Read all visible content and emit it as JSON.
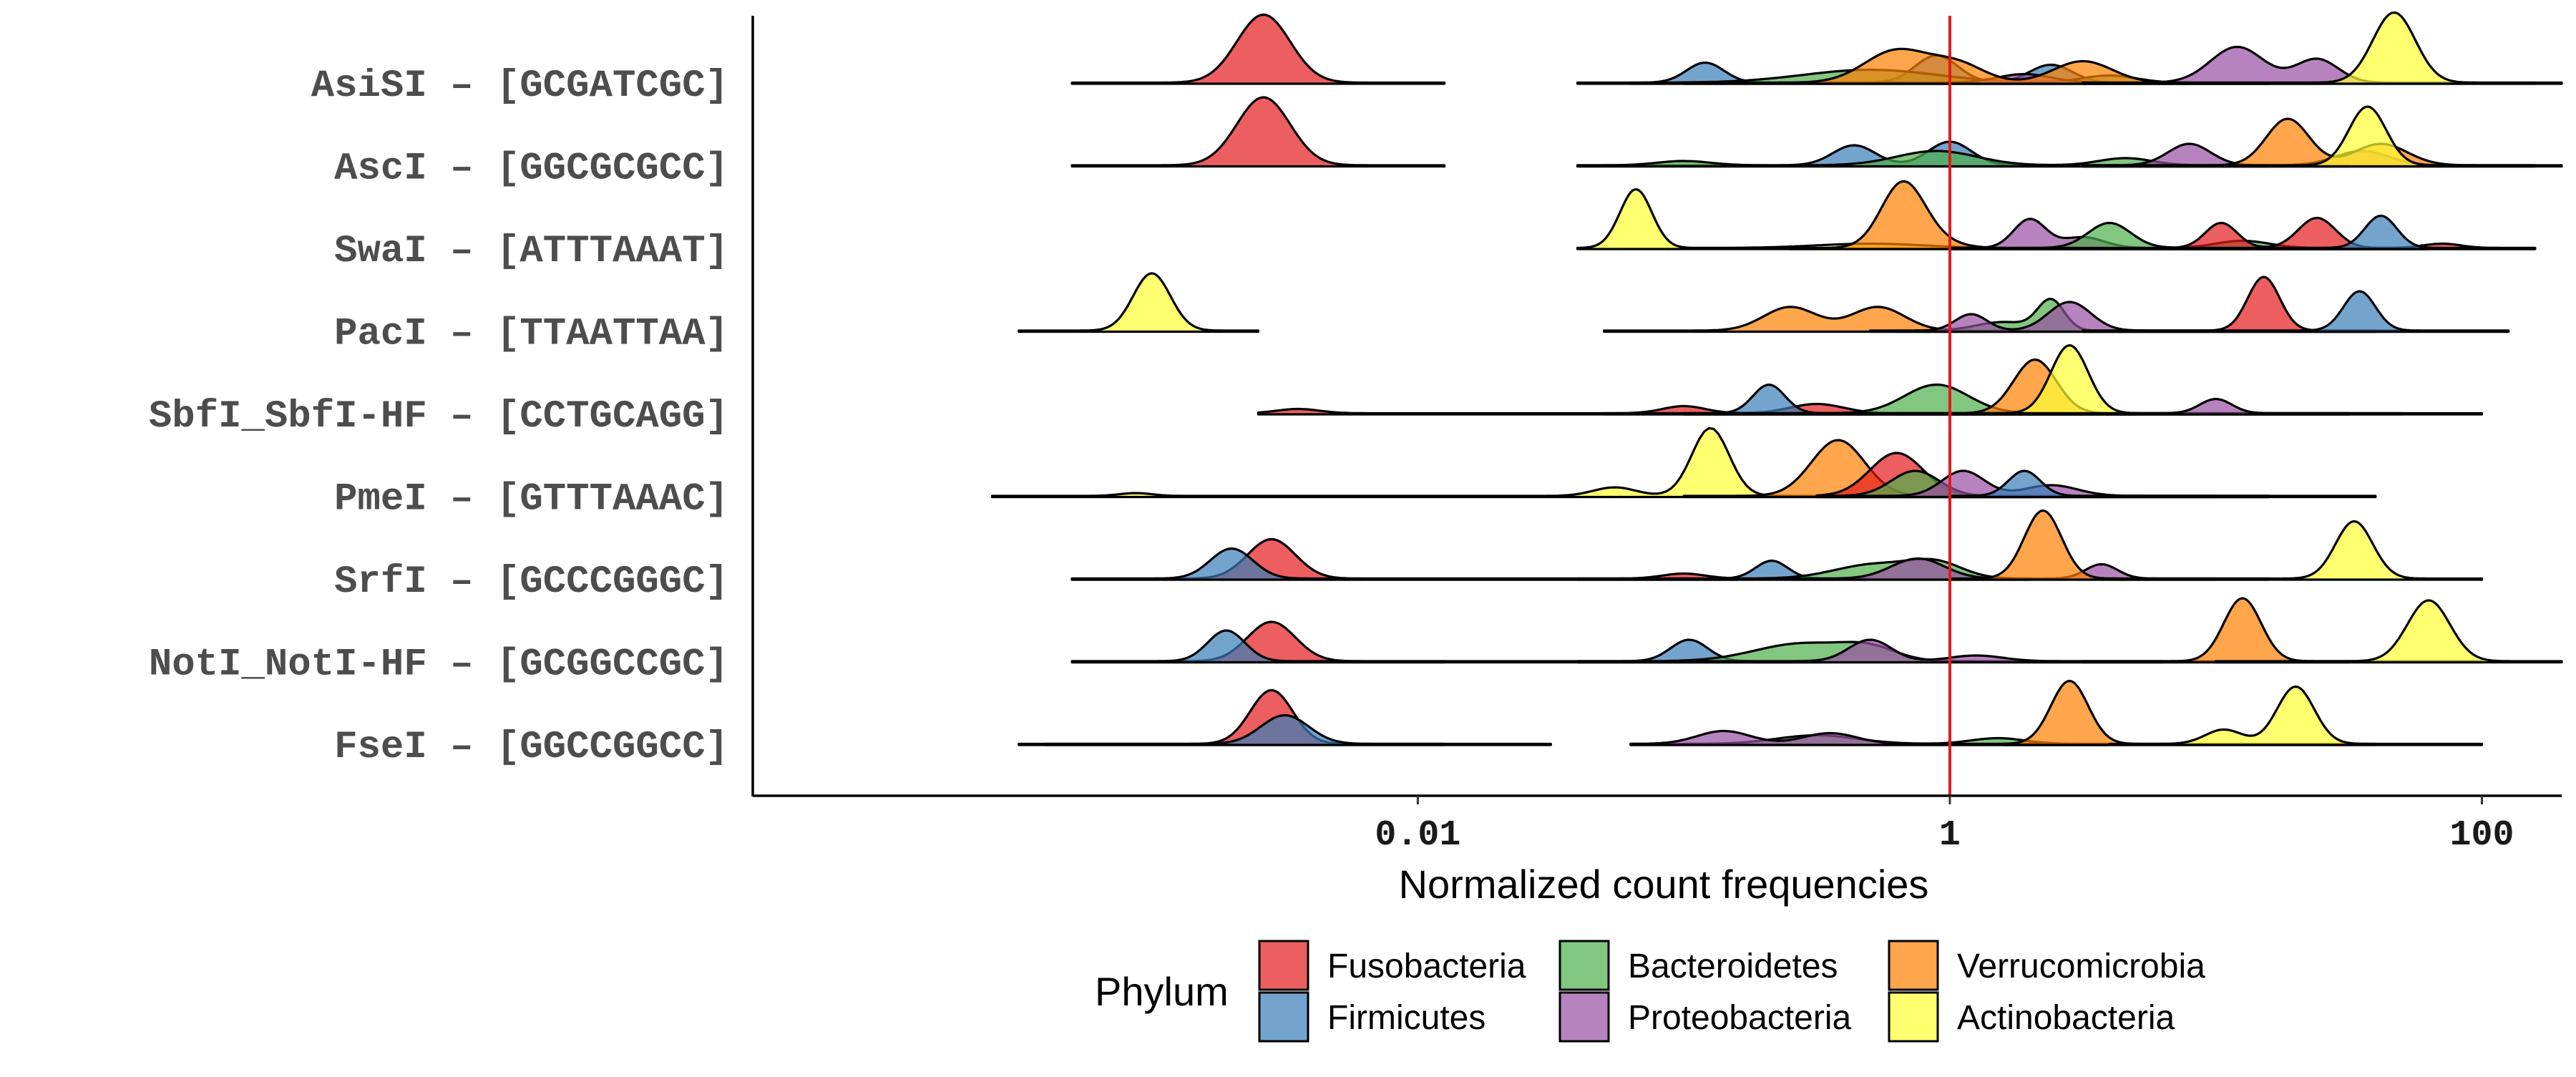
{
  "chart_data": {
    "type": "ridgeline",
    "title": "",
    "xlabel": "Normalized count frequencies",
    "ylabel": "",
    "x_scale": "log10",
    "x_range_log10": [
      -4.5,
      2.3
    ],
    "x_ticks": [
      {
        "value": 0.01,
        "label": "0.01"
      },
      {
        "value": 1,
        "label": "1"
      },
      {
        "value": 100,
        "label": "100"
      }
    ],
    "reference_line": {
      "x": 1,
      "color": "#e41a1c"
    },
    "categories": [
      "AsiSI – [GCGATCGC]",
      "AscI – [GGCGCGCC]",
      "SwaI – [ATTTAAAT]",
      "PacI – [TTAATTAA]",
      "SbfI_SbfI-HF – [CCTGCAGG]",
      "PmeI – [GTTTAAAC]",
      "SrfI – [GCCCGGGC]",
      "NotI_NotI-HF – [GCGGCCGC]",
      "FseI – [GGCCGGCC]"
    ],
    "legend": {
      "title": "Phylum",
      "position": "bottom",
      "entries": [
        {
          "name": "Fusobacteria",
          "color": "#e41a1c"
        },
        {
          "name": "Firmicutes",
          "color": "#377eb8"
        },
        {
          "name": "Bacteroidetes",
          "color": "#4daf4a"
        },
        {
          "name": "Proteobacteria",
          "color": "#984ea3"
        },
        {
          "name": "Verrucomicrobia",
          "color": "#ff7f00"
        },
        {
          "name": "Actinobacteria",
          "color": "#ffff33"
        }
      ]
    },
    "series": [
      {
        "category": "AsiSI – [GCGATCGC]",
        "phylum": "Fusobacteria",
        "range": [
          -3.3,
          -1.9
        ],
        "peaks": [
          [
            -2.58,
            0.1,
            0.95
          ]
        ]
      },
      {
        "category": "AsiSI – [GCGATCGC]",
        "phylum": "Firmicutes",
        "range": [
          -1.4,
          1.2
        ],
        "peaks": [
          [
            -0.92,
            0.07,
            0.28
          ],
          [
            -0.05,
            0.08,
            0.38
          ],
          [
            0.38,
            0.08,
            0.25
          ]
        ]
      },
      {
        "category": "AsiSI – [GCGATCGC]",
        "phylum": "Bacteroidetes",
        "range": [
          -1.2,
          1.4
        ],
        "peaks": [
          [
            -0.3,
            0.25,
            0.18
          ],
          [
            0.6,
            0.1,
            0.1
          ]
        ]
      },
      {
        "category": "AsiSI – [GCGATCGC]",
        "phylum": "Proteobacteria",
        "range": [
          -0.5,
          2.3
        ],
        "peaks": [
          [
            0.28,
            0.1,
            0.12
          ],
          [
            1.08,
            0.1,
            0.5
          ],
          [
            1.38,
            0.08,
            0.33
          ]
        ]
      },
      {
        "category": "AsiSI – [GCGATCGC]",
        "phylum": "Verrucomicrobia",
        "range": [
          -1.0,
          0.9
        ],
        "peaks": [
          [
            -0.2,
            0.12,
            0.45
          ],
          [
            0.03,
            0.1,
            0.25
          ],
          [
            0.5,
            0.11,
            0.3
          ]
        ]
      },
      {
        "category": "AsiSI – [GCGATCGC]",
        "phylum": "Actinobacteria",
        "range": [
          0.5,
          2.2
        ],
        "peaks": [
          [
            1.67,
            0.08,
            0.98
          ]
        ]
      },
      {
        "category": "AscI – [GGCGCGCC]",
        "phylum": "Fusobacteria",
        "range": [
          -3.3,
          -1.9
        ],
        "peaks": [
          [
            -2.58,
            0.1,
            0.95
          ]
        ]
      },
      {
        "category": "AscI – [GGCGCGCC]",
        "phylum": "Firmicutes",
        "range": [
          -1.4,
          1.5
        ],
        "peaks": [
          [
            -0.36,
            0.08,
            0.28
          ],
          [
            0.0,
            0.08,
            0.33
          ]
        ]
      },
      {
        "category": "AscI – [GGCGCGCC]",
        "phylum": "Bacteroidetes",
        "range": [
          -1.4,
          1.2
        ],
        "peaks": [
          [
            -1.0,
            0.1,
            0.06
          ],
          [
            -0.05,
            0.15,
            0.2
          ],
          [
            0.66,
            0.1,
            0.1
          ]
        ]
      },
      {
        "category": "AscI – [GGCGCGCC]",
        "phylum": "Proteobacteria",
        "range": [
          0.5,
          2.2
        ],
        "peaks": [
          [
            0.9,
            0.08,
            0.3
          ],
          [
            1.55,
            0.1,
            0.2
          ]
        ]
      },
      {
        "category": "AscI – [GGCGCGCC]",
        "phylum": "Verrucomicrobia",
        "range": [
          0.5,
          2.2
        ],
        "peaks": [
          [
            1.27,
            0.08,
            0.65
          ],
          [
            1.62,
            0.1,
            0.3
          ]
        ]
      },
      {
        "category": "AscI – [GGCGCGCC]",
        "phylum": "Actinobacteria",
        "range": [
          0.5,
          2.3
        ],
        "peaks": [
          [
            1.57,
            0.07,
            0.82
          ]
        ]
      },
      {
        "category": "SwaI – [ATTTAAAT]",
        "phylum": "Actinobacteria",
        "range": [
          -1.4,
          0.5
        ],
        "peaks": [
          [
            -1.18,
            0.06,
            0.82
          ],
          [
            -0.3,
            0.2,
            0.06
          ]
        ]
      },
      {
        "category": "SwaI – [ATTTAAAT]",
        "phylum": "Verrucomicrobia",
        "range": [
          -0.6,
          1.5
        ],
        "peaks": [
          [
            -0.18,
            0.08,
            0.82
          ],
          [
            -0.1,
            0.1,
            0.15
          ]
        ]
      },
      {
        "category": "SwaI – [ATTTAAAT]",
        "phylum": "Proteobacteria",
        "range": [
          0.0,
          1.8
        ],
        "peaks": [
          [
            0.3,
            0.06,
            0.4
          ],
          [
            0.5,
            0.08,
            0.15
          ]
        ]
      },
      {
        "category": "SwaI – [ATTTAAAT]",
        "phylum": "Bacteroidetes",
        "range": [
          0.0,
          1.8
        ],
        "peaks": [
          [
            0.6,
            0.08,
            0.35
          ],
          [
            1.1,
            0.1,
            0.1
          ]
        ]
      },
      {
        "category": "SwaI – [ATTTAAAT]",
        "phylum": "Fusobacteria",
        "range": [
          0.4,
          2.2
        ],
        "peaks": [
          [
            1.02,
            0.06,
            0.35
          ],
          [
            1.38,
            0.07,
            0.42
          ],
          [
            1.85,
            0.07,
            0.06
          ]
        ]
      },
      {
        "category": "SwaI – [ATTTAAAT]",
        "phylum": "Firmicutes",
        "range": [
          0.8,
          2.2
        ],
        "peaks": [
          [
            1.62,
            0.06,
            0.45
          ]
        ]
      },
      {
        "category": "PacI – [TTAATTAA]",
        "phylum": "Actinobacteria",
        "range": [
          -3.5,
          -2.6
        ],
        "peaks": [
          [
            -3.0,
            0.07,
            0.8
          ]
        ]
      },
      {
        "category": "PacI – [TTAATTAA]",
        "phylum": "Verrucomicrobia",
        "range": [
          -1.3,
          0.3
        ],
        "peaks": [
          [
            -0.6,
            0.1,
            0.33
          ],
          [
            -0.27,
            0.1,
            0.33
          ]
        ]
      },
      {
        "category": "PacI – [TTAATTAA]",
        "phylum": "Bacteroidetes",
        "range": [
          -0.3,
          1.6
        ],
        "peaks": [
          [
            0.2,
            0.1,
            0.12
          ],
          [
            0.38,
            0.05,
            0.42
          ]
        ]
      },
      {
        "category": "PacI – [TTAATTAA]",
        "phylum": "Proteobacteria",
        "range": [
          -0.2,
          1.6
        ],
        "peaks": [
          [
            0.08,
            0.06,
            0.23
          ],
          [
            0.45,
            0.08,
            0.4
          ]
        ]
      },
      {
        "category": "PacI – [TTAATTAA]",
        "phylum": "Fusobacteria",
        "range": [
          0.5,
          2.1
        ],
        "peaks": [
          [
            1.18,
            0.06,
            0.75
          ]
        ]
      },
      {
        "category": "PacI – [TTAATTAA]",
        "phylum": "Firmicutes",
        "range": [
          0.5,
          2.1
        ],
        "peaks": [
          [
            1.54,
            0.06,
            0.55
          ]
        ]
      },
      {
        "category": "SbfI_SbfI-HF – [CCTGCAGG]",
        "phylum": "Fusobacteria",
        "range": [
          -2.6,
          0.5
        ],
        "peaks": [
          [
            -2.45,
            0.08,
            0.06
          ],
          [
            -1.0,
            0.08,
            0.1
          ],
          [
            -0.5,
            0.1,
            0.13
          ]
        ]
      },
      {
        "category": "SbfI_SbfI-HF – [CCTGCAGG]",
        "phylum": "Firmicutes",
        "range": [
          -1.3,
          0.7
        ],
        "peaks": [
          [
            -0.68,
            0.06,
            0.4
          ]
        ]
      },
      {
        "category": "SbfI_SbfI-HF – [CCTGCAGG]",
        "phylum": "Bacteroidetes",
        "range": [
          -1.0,
          1.5
        ],
        "peaks": [
          [
            -0.05,
            0.12,
            0.4
          ]
        ]
      },
      {
        "category": "SbfI_SbfI-HF – [CCTGCAGG]",
        "phylum": "Verrucomicrobia",
        "range": [
          -1.0,
          1.5
        ],
        "peaks": [
          [
            0.32,
            0.08,
            0.75
          ]
        ]
      },
      {
        "category": "SbfI_SbfI-HF – [CCTGCAGG]",
        "phylum": "Actinobacteria",
        "range": [
          -0.2,
          1.7
        ],
        "peaks": [
          [
            0.45,
            0.07,
            0.95
          ]
        ]
      },
      {
        "category": "SbfI_SbfI-HF – [CCTGCAGG]",
        "phylum": "Proteobacteria",
        "range": [
          -0.5,
          2.0
        ],
        "peaks": [
          [
            1.0,
            0.06,
            0.2
          ]
        ]
      },
      {
        "category": "PmeI – [GTTTAAAC]",
        "phylum": "Actinobacteria",
        "range": [
          -3.6,
          0.3
        ],
        "peaks": [
          [
            -3.06,
            0.06,
            0.04
          ],
          [
            -1.26,
            0.08,
            0.12
          ],
          [
            -0.9,
            0.07,
            0.95
          ]
        ]
      },
      {
        "category": "PmeI – [GTTTAAAC]",
        "phylum": "Verrucomicrobia",
        "range": [
          -1.0,
          1.0
        ],
        "peaks": [
          [
            -0.42,
            0.1,
            0.78
          ]
        ]
      },
      {
        "category": "PmeI – [GTTTAAAC]",
        "phylum": "Fusobacteria",
        "range": [
          -0.5,
          1.2
        ],
        "peaks": [
          [
            -0.2,
            0.1,
            0.6
          ]
        ]
      },
      {
        "category": "PmeI – [GTTTAAAC]",
        "phylum": "Bacteroidetes",
        "range": [
          -0.5,
          1.2
        ],
        "peaks": [
          [
            -0.13,
            0.09,
            0.35
          ]
        ]
      },
      {
        "category": "PmeI – [GTTTAAAC]",
        "phylum": "Proteobacteria",
        "range": [
          -0.5,
          1.6
        ],
        "peaks": [
          [
            0.05,
            0.08,
            0.35
          ],
          [
            0.38,
            0.1,
            0.15
          ]
        ]
      },
      {
        "category": "PmeI – [GTTTAAAC]",
        "phylum": "Firmicutes",
        "range": [
          0.0,
          1.2
        ],
        "peaks": [
          [
            0.28,
            0.06,
            0.35
          ]
        ]
      },
      {
        "category": "SrfI – [GCCCGGGC]",
        "phylum": "Fusobacteria",
        "range": [
          -3.3,
          -0.8
        ],
        "peaks": [
          [
            -2.55,
            0.09,
            0.55
          ],
          [
            -1.0,
            0.08,
            0.07
          ]
        ]
      },
      {
        "category": "SrfI – [GCCCGGGC]",
        "phylum": "Firmicutes",
        "range": [
          -3.3,
          -0.3
        ],
        "peaks": [
          [
            -2.7,
            0.08,
            0.42
          ],
          [
            -0.67,
            0.06,
            0.25
          ]
        ]
      },
      {
        "category": "SrfI – [GCCCGGGC]",
        "phylum": "Bacteroidetes",
        "range": [
          -1.4,
          0.3
        ],
        "peaks": [
          [
            -0.28,
            0.15,
            0.2
          ],
          [
            -0.05,
            0.1,
            0.2
          ]
        ]
      },
      {
        "category": "SrfI – [GCCCGGGC]",
        "phylum": "Proteobacteria",
        "range": [
          -0.6,
          1.2
        ],
        "peaks": [
          [
            -0.12,
            0.1,
            0.28
          ],
          [
            0.57,
            0.06,
            0.2
          ]
        ]
      },
      {
        "category": "SrfI – [GCCCGGGC]",
        "phylum": "Verrucomicrobia",
        "range": [
          0.0,
          1.0
        ],
        "peaks": [
          [
            0.35,
            0.07,
            0.95
          ]
        ]
      },
      {
        "category": "SrfI – [GCCCGGGC]",
        "phylum": "Actinobacteria",
        "range": [
          0.6,
          2.0
        ],
        "peaks": [
          [
            1.52,
            0.07,
            0.8
          ]
        ]
      },
      {
        "category": "NotI_NotI-HF – [GCGGCCGC]",
        "phylum": "Fusobacteria",
        "range": [
          -3.3,
          -1.9
        ],
        "peaks": [
          [
            -2.55,
            0.09,
            0.55
          ]
        ]
      },
      {
        "category": "NotI_NotI-HF – [GCGGCCGC]",
        "phylum": "Firmicutes",
        "range": [
          -3.3,
          -0.5
        ],
        "peaks": [
          [
            -2.72,
            0.07,
            0.43
          ],
          [
            -0.98,
            0.07,
            0.3
          ]
        ]
      },
      {
        "category": "NotI_NotI-HF – [GCGGCCGC]",
        "phylum": "Bacteroidetes",
        "range": [
          -1.4,
          0.8
        ],
        "peaks": [
          [
            -0.55,
            0.18,
            0.25
          ],
          [
            -0.3,
            0.1,
            0.15
          ]
        ]
      },
      {
        "category": "NotI_NotI-HF – [GCGGCCGC]",
        "phylum": "Proteobacteria",
        "range": [
          -1.4,
          1.5
        ],
        "peaks": [
          [
            -0.3,
            0.08,
            0.3
          ],
          [
            0.1,
            0.1,
            0.08
          ]
        ]
      },
      {
        "category": "NotI_NotI-HF – [GCGGCCGC]",
        "phylum": "Verrucomicrobia",
        "range": [
          0.5,
          2.0
        ],
        "peaks": [
          [
            1.1,
            0.07,
            0.88
          ]
        ]
      },
      {
        "category": "NotI_NotI-HF – [GCGGCCGC]",
        "phylum": "Actinobacteria",
        "range": [
          1.0,
          2.3
        ],
        "peaks": [
          [
            1.8,
            0.08,
            0.85
          ]
        ]
      },
      {
        "category": "FseI – [GGCCGGCC]",
        "phylum": "Fusobacteria",
        "range": [
          -3.5,
          -1.9
        ],
        "peaks": [
          [
            -2.55,
            0.08,
            0.75
          ]
        ]
      },
      {
        "category": "FseI – [GGCCGGCC]",
        "phylum": "Firmicutes",
        "range": [
          -3.4,
          -1.5
        ],
        "peaks": [
          [
            -2.5,
            0.09,
            0.4
          ],
          [
            -1.23,
            0.05,
            0.45
          ]
        ]
      },
      {
        "category": "FseI – [GGCCGGCC]",
        "phylum": "Bacteroidetes",
        "range": [
          -1.2,
          0.6
        ],
        "peaks": [
          [
            -0.5,
            0.15,
            0.12
          ],
          [
            0.18,
            0.1,
            0.08
          ]
        ]
      },
      {
        "category": "FseI – [GGCCGGCC]",
        "phylum": "Proteobacteria",
        "range": [
          -1.2,
          0.6
        ],
        "peaks": [
          [
            -0.85,
            0.1,
            0.18
          ],
          [
            -0.45,
            0.1,
            0.15
          ]
        ]
      },
      {
        "category": "FseI – [GGCCGGCC]",
        "phylum": "Verrucomicrobia",
        "range": [
          0.2,
          1.6
        ],
        "peaks": [
          [
            0.45,
            0.07,
            0.88
          ]
        ]
      },
      {
        "category": "FseI – [GGCCGGCC]",
        "phylum": "Actinobacteria",
        "range": [
          0.6,
          2.0
        ],
        "peaks": [
          [
            1.03,
            0.07,
            0.2
          ],
          [
            1.3,
            0.07,
            0.8
          ]
        ]
      }
    ]
  }
}
